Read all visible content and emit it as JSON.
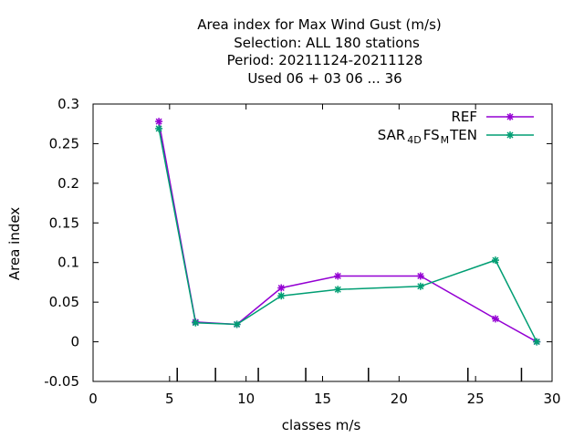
{
  "chart_data": {
    "type": "line",
    "title_lines": [
      "Area index  for Max Wind Gust (m/s)",
      "Selection: ALL    180 stations",
      "Period: 20211124-20211128",
      "Used  06 + 03 06 ... 36"
    ],
    "xlabel": "classes m/s",
    "ylabel": "Area index",
    "xlim": [
      0,
      30
    ],
    "ylim": [
      -0.05,
      0.3
    ],
    "xticks": [
      0,
      5,
      10,
      15,
      20,
      25,
      30
    ],
    "xtick_labels": [
      "0",
      "5",
      "10",
      "15",
      "20",
      "25",
      "30"
    ],
    "yticks": [
      -0.05,
      0,
      0.05,
      0.1,
      0.15,
      0.2,
      0.25,
      0.3
    ],
    "ytick_labels": [
      "-0.05",
      "0",
      "0.05",
      "0.1",
      "0.15",
      "0.2",
      "0.25",
      "0.3"
    ],
    "class_boundaries": [
      5.5,
      8,
      10.8,
      13.9,
      18,
      24.5,
      28
    ],
    "grid": false,
    "legend_position": "top-right",
    "series": [
      {
        "name": "REF",
        "color": "#9400d3",
        "x": [
          4.3,
          6.7,
          9.4,
          12.3,
          16.0,
          21.4,
          26.3,
          29.0
        ],
        "y": [
          0.278,
          0.025,
          0.022,
          0.068,
          0.083,
          0.083,
          0.029,
          0.0
        ]
      },
      {
        "name_parts": [
          "SAR",
          "4D",
          "FS",
          "M",
          "TEN"
        ],
        "color": "#009e73",
        "x": [
          4.3,
          6.7,
          9.4,
          12.3,
          16.0,
          21.4,
          26.3,
          29.0
        ],
        "y": [
          0.269,
          0.024,
          0.022,
          0.058,
          0.066,
          0.07,
          0.103,
          0.0
        ]
      }
    ]
  }
}
